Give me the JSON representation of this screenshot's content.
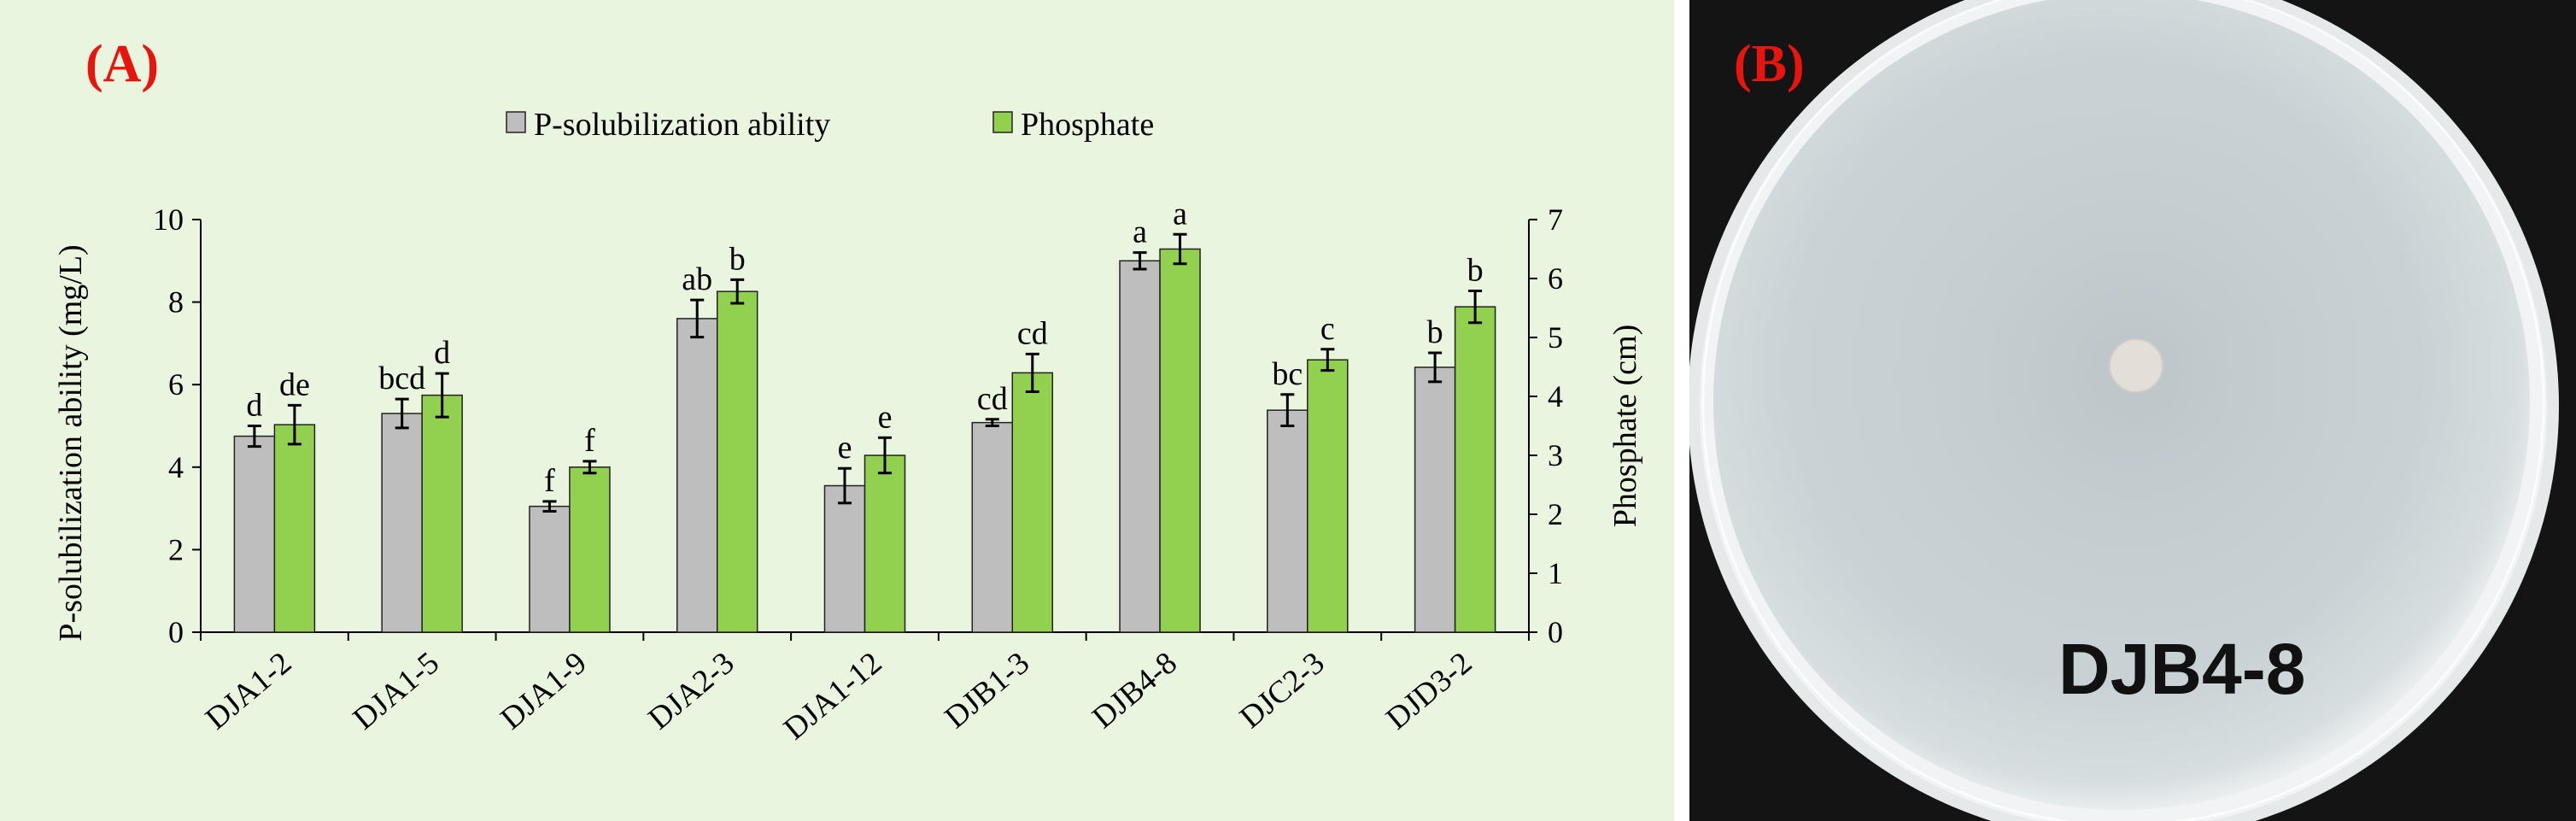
{
  "panel_a_label": "(A)",
  "panel_b_label": "(B)",
  "strain_label": "DJB4-8",
  "colors": {
    "series1": "#bebebe",
    "series2": "#92d050",
    "label": "#e8150f",
    "panel_bg": "#e9f5df"
  },
  "chart_data": {
    "type": "bar",
    "categories": [
      "DJA1-2",
      "DJA1-5",
      "DJA1-9",
      "DJA2-3",
      "DJA1-12",
      "DJB1-3",
      "DJB4-8",
      "DJC2-3",
      "DJD3-2"
    ],
    "series": [
      {
        "name": "P-solubilization ability",
        "axis": "left",
        "values": [
          4.75,
          5.3,
          3.05,
          7.6,
          3.55,
          5.08,
          9.0,
          5.38,
          6.42
        ],
        "errors": [
          0.25,
          0.35,
          0.12,
          0.45,
          0.42,
          0.08,
          0.2,
          0.38,
          0.35
        ],
        "letters": [
          "d",
          "bcd",
          "f",
          "ab",
          "e",
          "cd",
          "a",
          "bc",
          "b"
        ]
      },
      {
        "name": "Phosphate",
        "axis": "right",
        "values": [
          3.52,
          4.02,
          2.8,
          5.78,
          3.0,
          4.4,
          6.5,
          4.62,
          5.52
        ],
        "errors": [
          0.33,
          0.37,
          0.1,
          0.2,
          0.3,
          0.32,
          0.25,
          0.18,
          0.27
        ],
        "letters": [
          "de",
          "d",
          "f",
          "b",
          "e",
          "cd",
          "a",
          "c",
          "b"
        ]
      }
    ],
    "ylabel": "P-solubilization  ability  (mg/L)",
    "y2label": "Phosphate (cm)",
    "ylim": [
      0,
      10
    ],
    "y2lim": [
      0,
      7
    ],
    "yticks": [
      "0",
      "2",
      "4",
      "6",
      "8",
      "10"
    ],
    "y2ticks": [
      "0",
      "1",
      "2",
      "3",
      "4",
      "5",
      "6",
      "7"
    ],
    "legend_position": "top-center",
    "grid": false
  }
}
